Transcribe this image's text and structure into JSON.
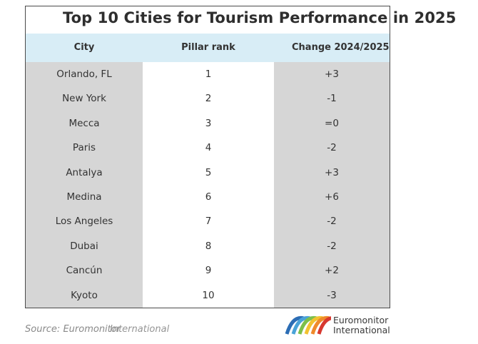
{
  "title": "Top 10 Cities for Tourism Performance in 2025",
  "table": {
    "headers": [
      "City",
      "Pillar rank",
      "Change 2024/2025"
    ],
    "rows": [
      {
        "city": "Orlando, FL",
        "rank": "1",
        "change": "+3"
      },
      {
        "city": "New York",
        "rank": "2",
        "change": "-1"
      },
      {
        "city": "Mecca",
        "rank": "3",
        "change": "=0"
      },
      {
        "city": "Paris",
        "rank": "4",
        "change": "-2"
      },
      {
        "city": "Antalya",
        "rank": "5",
        "change": "+3"
      },
      {
        "city": "Medina",
        "rank": "6",
        "change": "+6"
      },
      {
        "city": "Los Angeles",
        "rank": "7",
        "change": "-2"
      },
      {
        "city": "Dubai",
        "rank": "8",
        "change": "-2"
      },
      {
        "city": "Cancún",
        "rank": "9",
        "change": "+2"
      },
      {
        "city": "Kyoto",
        "rank": "10",
        "change": "-3"
      }
    ]
  },
  "footer": {
    "source": "Source: Euromonitor",
    "source_overlap": "International",
    "brand_line1": "Euromonitor",
    "brand_line2": "International"
  },
  "colors": {
    "header_bg": "#d8edf6",
    "grey_col": "#d6d6d6",
    "logo_arcs": [
      "#2c6db5",
      "#4aa3d8",
      "#7cc04b",
      "#f2c230",
      "#ef8a2b",
      "#d7382f"
    ]
  }
}
